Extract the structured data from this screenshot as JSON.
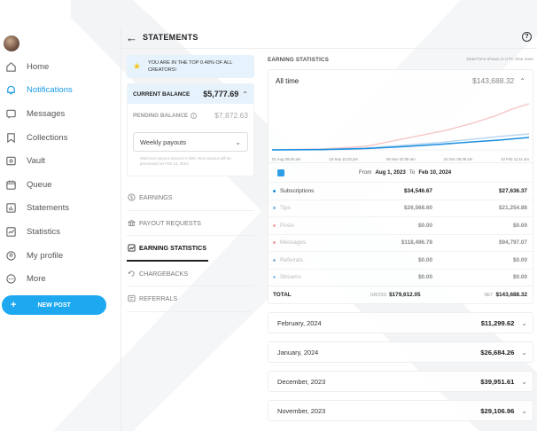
{
  "sidebar": {
    "items": [
      {
        "label": "Home",
        "icon": "home-icon",
        "active": false
      },
      {
        "label": "Notifications",
        "icon": "bell-icon",
        "active": true
      },
      {
        "label": "Messages",
        "icon": "message-icon",
        "active": false
      },
      {
        "label": "Collections",
        "icon": "bookmark-icon",
        "active": false
      },
      {
        "label": "Vault",
        "icon": "vault-icon",
        "active": false
      },
      {
        "label": "Queue",
        "icon": "calendar-icon",
        "active": false
      },
      {
        "label": "Statements",
        "icon": "statements-icon",
        "active": false
      },
      {
        "label": "Statistics",
        "icon": "chart-icon",
        "active": false
      },
      {
        "label": "My profile",
        "icon": "profile-icon",
        "active": false
      },
      {
        "label": "More",
        "icon": "more-icon",
        "active": false
      }
    ],
    "new_post_label": "NEW POST",
    "new_post_icon": "+"
  },
  "header": {
    "back_icon": "←",
    "title": "STATEMENTS",
    "help_icon": "?"
  },
  "left_panel": {
    "banner_text": "YOU ARE IN THE TOP 0.48% OF ALL CREATORS!",
    "current_balance_label": "CURRENT BALANCE",
    "current_balance_value": "$5,777.69",
    "pending_balance_label": "PENDING BALANCE",
    "pending_balance_value": "$7,872.63",
    "payout_select_value": "Weekly payouts",
    "payout_note": "Minimum payout amount is $20. Next payout will be processed on Feb 12, 2024",
    "menu": [
      {
        "label": "EARNINGS",
        "icon": "dollar-icon"
      },
      {
        "label": "PAYOUT REQUESTS",
        "icon": "bank-icon"
      },
      {
        "label": "EARNING STATISTICS",
        "icon": "trend-icon",
        "active": true
      },
      {
        "label": "CHARGEBACKS",
        "icon": "refund-icon"
      },
      {
        "label": "REFERRALS",
        "icon": "referral-icon"
      }
    ]
  },
  "right_panel": {
    "section_title": "EARNING STATISTICS",
    "timezone_note": "Date/Time shown in UTC time zone",
    "range_label": "All time",
    "range_value": "$143,688.32",
    "x_ticks": [
      "01 Aug 06:00 am",
      "18 Sep 10:32 pm",
      "06 Nov 02:08 am",
      "24 Dec 06:38 am",
      "10 Feb 11:11 am"
    ],
    "date_from_label": "From",
    "date_from": "Aug 1, 2023",
    "date_to_label": "To",
    "date_to": "Feb 10, 2024",
    "stats": [
      {
        "name": "Subscriptions",
        "gross": "$34,546.67",
        "net": "$27,636.37",
        "color": "#1a8ee0",
        "faded": false
      },
      {
        "name": "Tips",
        "gross": "$26,568.60",
        "net": "$21,254.88",
        "color": "#7ab8e6",
        "faded": true
      },
      {
        "name": "Posts",
        "gross": "$0.00",
        "net": "$0.00",
        "color": "#f6a7a7",
        "faded": true
      },
      {
        "name": "Messages",
        "gross": "$118,496.78",
        "net": "$94,797.07",
        "color": "#f1a0a0",
        "faded": true
      },
      {
        "name": "Referrals",
        "gross": "$0.00",
        "net": "$0.00",
        "color": "#8ab4d9",
        "faded": true
      },
      {
        "name": "Streams",
        "gross": "$0.00",
        "net": "$0.00",
        "color": "#9ec7e8",
        "faded": true
      }
    ],
    "total_label": "TOTAL",
    "total_gross_label": "GROSS",
    "total_gross": "$179,612.05",
    "total_net_label": "NET",
    "total_net": "$143,688.32",
    "months": [
      {
        "label": "February, 2024",
        "value": "$11,299.62"
      },
      {
        "label": "January, 2024",
        "value": "$26,684.26"
      },
      {
        "label": "December, 2023",
        "value": "$39,951.61"
      },
      {
        "label": "November, 2023",
        "value": "$29,106.96"
      }
    ]
  },
  "colors": {
    "accent": "#1a9ae6",
    "new_post_bg": "#1da8f0",
    "banner_bg": "#e6f2fc"
  }
}
